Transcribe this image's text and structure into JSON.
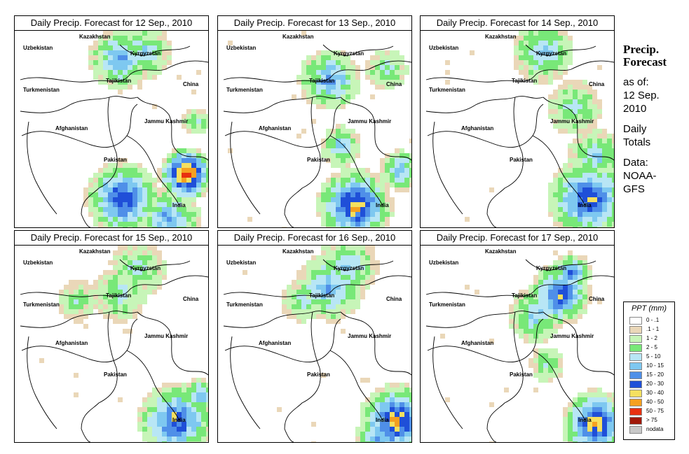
{
  "panels": [
    {
      "title": "Daily Precip. Forecast for  12 Sep., 2010",
      "variant": 0
    },
    {
      "title": "Daily Precip. Forecast for  13 Sep., 2010",
      "variant": 1
    },
    {
      "title": "Daily Precip. Forecast for  14 Sep., 2010",
      "variant": 2
    },
    {
      "title": "Daily Precip. Forecast for  15 Sep., 2010",
      "variant": 3
    },
    {
      "title": "Daily Precip. Forecast for  16 Sep., 2010",
      "variant": 4
    },
    {
      "title": "Daily Precip. Forecast for  17 Sep., 2010",
      "variant": 5
    }
  ],
  "map_labels": {
    "kazakhstan": "Kazakhstan",
    "uzbekistan": "Uzbekistan",
    "kyrgyzstan": "Kyrgyzstan",
    "tajikistan": "Tajikistan",
    "turkmenistan": "Turkmenistan",
    "china": "China",
    "afghanistan": "Afghanistan",
    "jammu_kashmir": "Jammu Kashmir",
    "pakistan": "Pakistan",
    "india": "India"
  },
  "side": {
    "title_line1": "Precip.",
    "title_line2": "Forecast",
    "asof1": "as of:",
    "asof2": "12 Sep.",
    "asof3": "2010",
    "daily1": "Daily",
    "daily2": "Totals",
    "data1": "Data:",
    "data2": "NOAA-",
    "data3": "GFS"
  },
  "legend": {
    "title": "PPT (mm)",
    "items": [
      {
        "label": "0 - .1",
        "color": "#ffffff"
      },
      {
        "label": ".1 - 1",
        "color": "#ead7b8"
      },
      {
        "label": "1 - 2",
        "color": "#c7f5b8"
      },
      {
        "label": "2 - 5",
        "color": "#78e878"
      },
      {
        "label": "5 - 10",
        "color": "#b8e6f5"
      },
      {
        "label": "10 - 15",
        "color": "#7ec8f0"
      },
      {
        "label": "15 - 20",
        "color": "#4f8fe8"
      },
      {
        "label": "20 - 30",
        "color": "#1f4fd8"
      },
      {
        "label": "30 - 40",
        "color": "#f5e060"
      },
      {
        "label": "40 - 50",
        "color": "#f5a020"
      },
      {
        "label": "50 - 75",
        "color": "#e83010"
      },
      {
        "label": "> 75",
        "color": "#a01808"
      },
      {
        "label": "nodata",
        "color": "#c8c8c8"
      }
    ]
  }
}
